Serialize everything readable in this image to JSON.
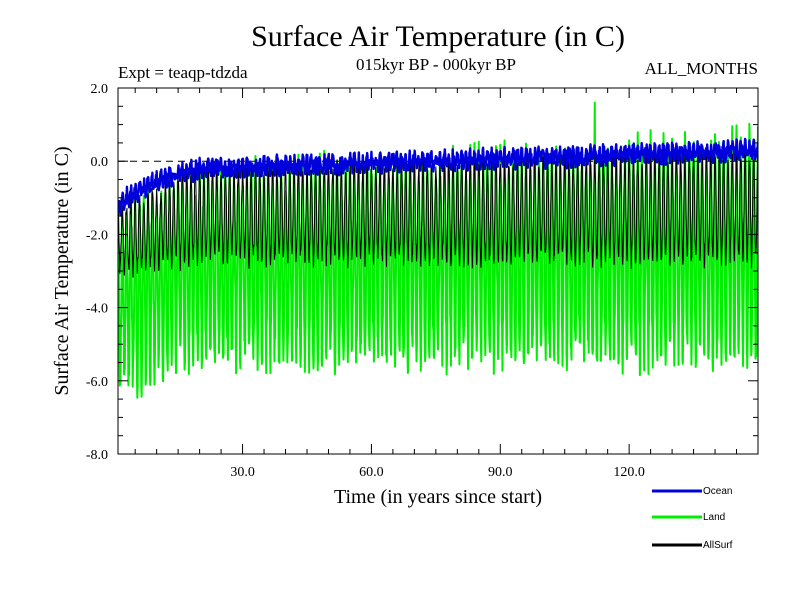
{
  "chart_data": {
    "type": "line",
    "title": "Surface Air Temperature (in C)",
    "subtitle_left": "Expt = teaqp-tdzda",
    "subtitle_center": "015kyr BP - 000kyr BP",
    "subtitle_right": "ALL_MONTHS",
    "xlabel": "Time (in years since start)",
    "ylabel": "Surface Air Temperature (in C)",
    "xlim": [
      1,
      150
    ],
    "ylim": [
      -8.0,
      2.0
    ],
    "x_ticks": [
      30,
      60,
      90,
      120
    ],
    "x_tick_labels": [
      "30.0",
      "60.0",
      "90.0",
      "120.0"
    ],
    "y_ticks": [
      -8,
      -6,
      -4,
      -2,
      0,
      2
    ],
    "y_tick_labels": [
      "-8.0",
      "-6.0",
      "-4.0",
      "-2.0",
      "0.0",
      "2.0"
    ],
    "reference_line": 0.0,
    "samples_per_year": 12,
    "legend_position": "bottom-right",
    "series": [
      {
        "name": "Land",
        "color": "#00ee00",
        "summary": "monthly seasonal cycle, troughs about -5.5, peaks about -0.5 rising to about 0.5 by year 150",
        "start_trough": -6.2,
        "trough": -5.3,
        "start_peak": -1.5,
        "peak_early": -0.6,
        "peak_late": 0.5,
        "max_value": 1.6
      },
      {
        "name": "AllSurf",
        "color": "#000000",
        "summary": "monthly seasonal cycle, troughs about -2.7, peaks near 0",
        "start_trough": -3.0,
        "trough": -2.7,
        "start_peak": -1.3,
        "peak_early": -0.3,
        "peak_late": 0.2
      },
      {
        "name": "Ocean",
        "color": "#0000dd",
        "summary": "rises from about -1.4 at start to about 0.0 by year 20, drifts up to about 0.3 by year 150",
        "start_value": -1.4,
        "value_year20": -0.2,
        "value_end": 0.3,
        "spread": 0.3
      }
    ]
  }
}
